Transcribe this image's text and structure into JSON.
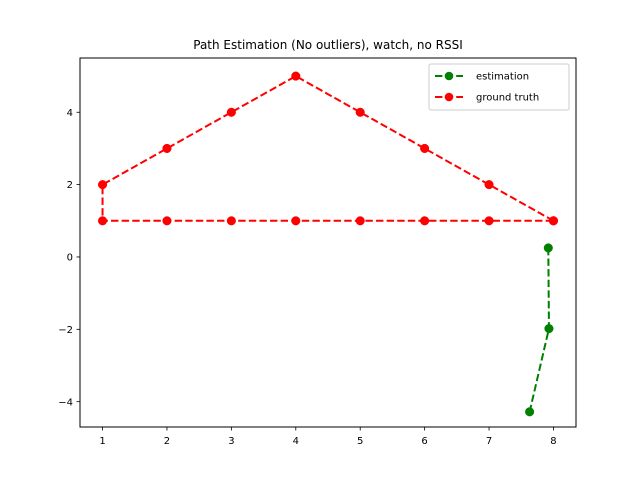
{
  "chart_data": {
    "type": "line",
    "title": "Path Estimation (No outliers), watch, no RSSI",
    "xlabel": "",
    "ylabel": "",
    "xlim": [
      0.65,
      8.35
    ],
    "ylim": [
      -4.7,
      5.5
    ],
    "xticks": [
      1,
      2,
      3,
      4,
      5,
      6,
      7,
      8
    ],
    "yticks": [
      -4,
      -2,
      0,
      2,
      4
    ],
    "ytick_labels": [
      "−4",
      "−2",
      "0",
      "2",
      "4"
    ],
    "grid": false,
    "legend": "top-right",
    "series": [
      {
        "name": "estimation",
        "color": "#008000",
        "line_style": "dashed",
        "marker": "circle",
        "points": [
          [
            7.92,
            0.25
          ],
          [
            7.93,
            -1.98
          ],
          [
            7.63,
            -4.28
          ]
        ]
      },
      {
        "name": "ground truth",
        "color": "#ff0000",
        "line_style": "dashed",
        "marker": "circle",
        "points": [
          [
            8,
            1
          ],
          [
            7,
            2
          ],
          [
            6,
            3
          ],
          [
            5,
            4
          ],
          [
            4,
            5
          ],
          [
            3,
            4
          ],
          [
            2,
            3
          ],
          [
            1,
            2
          ],
          [
            1,
            1
          ],
          [
            2,
            1
          ],
          [
            3,
            1
          ],
          [
            4,
            1
          ],
          [
            5,
            1
          ],
          [
            6,
            1
          ],
          [
            7,
            1
          ],
          [
            8,
            1
          ]
        ]
      }
    ]
  }
}
